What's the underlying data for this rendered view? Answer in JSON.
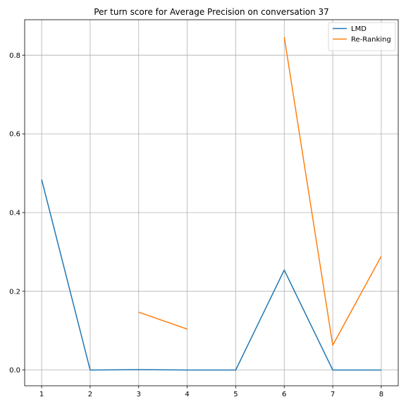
{
  "chart_data": {
    "type": "line",
    "title": "Per turn score for Average Precision on conversation 37",
    "xlabel": "",
    "ylabel": "",
    "x": [
      1,
      2,
      3,
      4,
      5,
      6,
      7,
      8
    ],
    "xlim": [
      0.65,
      8.35
    ],
    "ylim": [
      -0.04,
      0.89
    ],
    "xticks": [
      "1",
      "2",
      "3",
      "4",
      "5",
      "6",
      "7",
      "8"
    ],
    "yticks": [
      "0.0",
      "0.2",
      "0.4",
      "0.6",
      "0.8"
    ],
    "grid": true,
    "legend_position": "top-right",
    "series": [
      {
        "name": "LMD",
        "color": "#1f77b4",
        "values": [
          0.484,
          0.0,
          0.001,
          0.0,
          0.0,
          0.254,
          0.0,
          0.0
        ]
      },
      {
        "name": "Re-Ranking",
        "color": "#ff7f0e",
        "values": [
          null,
          null,
          0.147,
          0.104,
          null,
          0.846,
          0.063,
          0.289
        ]
      }
    ]
  }
}
